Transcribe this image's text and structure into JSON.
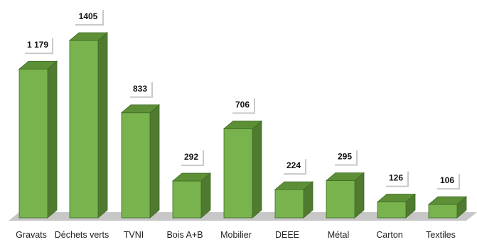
{
  "chart_data": {
    "type": "bar",
    "style": "3d-column",
    "categories": [
      "Gravats",
      "Déchets verts",
      "TVNI",
      "Bois A+B",
      "Mobilier",
      "DEEE",
      "Métal",
      "Carton",
      "Textiles"
    ],
    "values": [
      1179,
      1405,
      833,
      292,
      706,
      224,
      295,
      126,
      106
    ],
    "data_labels": [
      "1 179",
      "1405",
      "833",
      "292",
      "706",
      "224",
      "295",
      "126",
      "106"
    ],
    "title": "",
    "xlabel": "",
    "ylabel": "",
    "ylim": [
      0,
      1405
    ],
    "grid": false,
    "legend": "none",
    "colors": {
      "bar_front": "#79b34e",
      "bar_top": "#5d8f37",
      "bar_side": "#4f7a2f",
      "bar_edge": "#3e6a26",
      "floor": "#c7c7c7",
      "label_box": "#ffffff",
      "label_box_shadow": "#c9c9c9"
    }
  }
}
